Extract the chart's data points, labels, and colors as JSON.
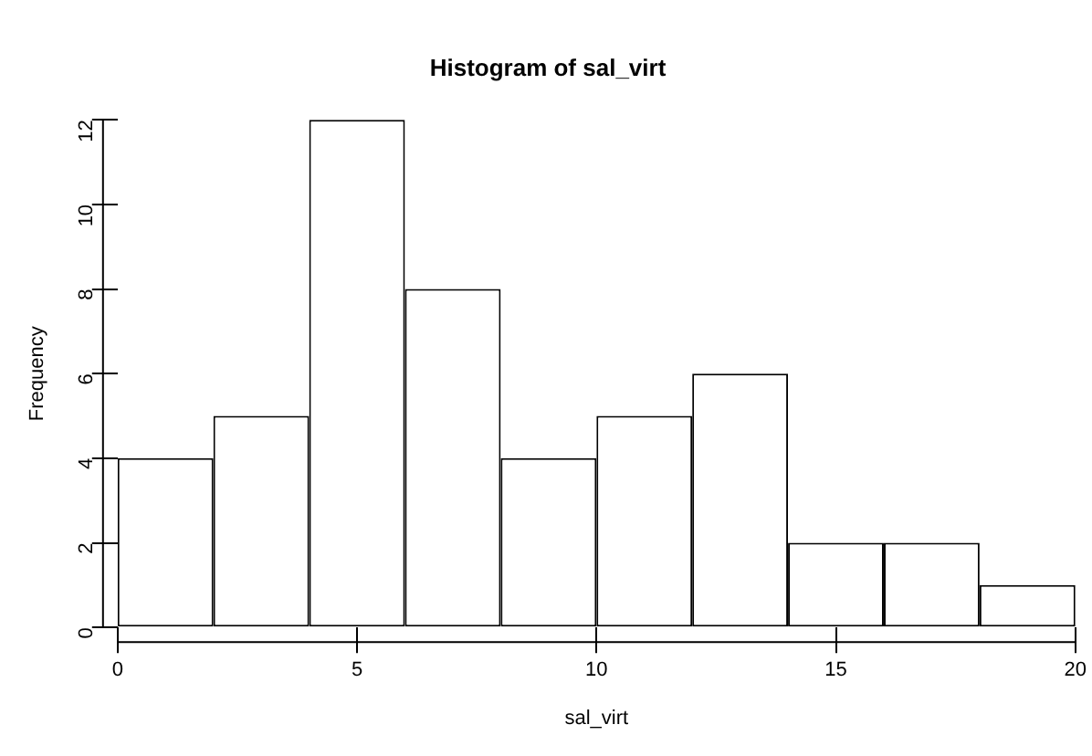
{
  "chart_data": {
    "type": "histogram",
    "title": "Histogram of sal_virt",
    "xlabel": "sal_virt",
    "ylabel": "Frequency",
    "bins": [
      0,
      2,
      4,
      6,
      8,
      10,
      12,
      14,
      16,
      18,
      20
    ],
    "values": [
      4,
      5,
      12,
      8,
      4,
      5,
      6,
      2,
      2,
      1
    ],
    "color": "#ffffff",
    "xlim": [
      0,
      20
    ],
    "xticks": [
      0,
      5,
      10,
      15,
      20
    ],
    "ylim": [
      0,
      12
    ],
    "yticks": [
      0,
      2,
      4,
      6,
      8,
      10,
      12
    ],
    "grid": false,
    "legend": false
  }
}
